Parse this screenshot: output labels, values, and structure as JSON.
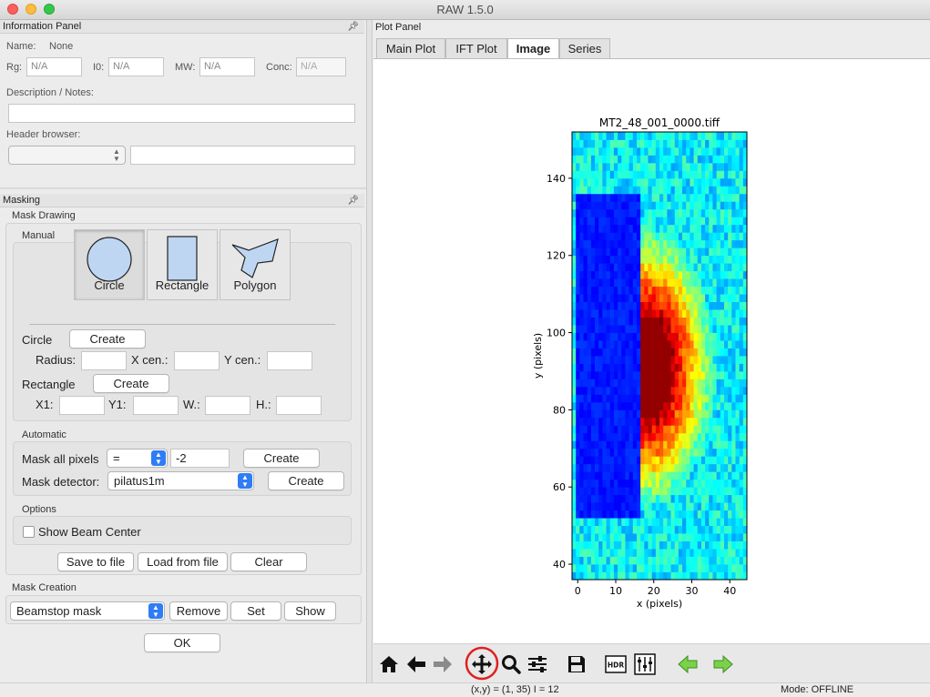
{
  "window": {
    "title": "RAW 1.5.0"
  },
  "info_panel": {
    "title": "Information Panel",
    "name_label": "Name:",
    "name_value": "None",
    "rg_label": "Rg:",
    "rg_value": "N/A",
    "i0_label": "I0:",
    "i0_value": "N/A",
    "mw_label": "MW:",
    "mw_value": "N/A",
    "conc_label": "Conc:",
    "conc_value": "N/A",
    "notes_label": "Description / Notes:",
    "header_label": "Header browser:"
  },
  "masking": {
    "title": "Masking",
    "drawing_label": "Mask Drawing",
    "manual_label": "Manual",
    "tools": [
      "Circle",
      "Rectangle",
      "Polygon"
    ],
    "circle_label": "Circle",
    "create_label": "Create",
    "radius_label": "Radius:",
    "xcen_label": "X cen.:",
    "ycen_label": "Y cen.:",
    "rectangle_label": "Rectangle",
    "x1_label": "X1:",
    "y1_label": "Y1:",
    "w_label": "W.:",
    "h_label": "H.:",
    "automatic_label": "Automatic",
    "mask_all_label": "Mask all pixels",
    "mask_all_op": "=",
    "mask_all_value": "-2",
    "mask_detector_label": "Mask detector:",
    "detector_value": "pilatus1m",
    "options_label": "Options",
    "show_beam_label": "Show Beam Center",
    "save_label": "Save to file",
    "load_label": "Load from file",
    "clear_label": "Clear",
    "creation_label": "Mask Creation",
    "mask_type_value": "Beamstop mask",
    "remove_label": "Remove",
    "set_label": "Set",
    "show_label": "Show",
    "ok_label": "OK"
  },
  "plot_panel": {
    "title": "Plot Panel",
    "tabs": [
      "Main Plot",
      "IFT Plot",
      "Image",
      "Series"
    ],
    "active_tab": "Image"
  },
  "status": {
    "coords": "(x,y) = (1, 35)   I = 12",
    "mode": "Mode: OFFLINE"
  },
  "toolbar": {
    "icons": [
      "home-icon",
      "back-icon",
      "forward-icon",
      "pan-icon",
      "zoom-icon",
      "configure-subplots-icon",
      "save-icon",
      "hdr-icon",
      "image-settings-icon",
      "previous-image-icon",
      "next-image-icon"
    ],
    "highlighted": "pan-icon"
  },
  "chart_data": {
    "type": "heatmap",
    "title": "MT2_48_001_0000.tiff",
    "xlabel": "x (pixels)",
    "ylabel": "y (pixels)",
    "xlim": [
      -1.5,
      44.5
    ],
    "ylim": [
      36,
      152
    ],
    "xticks": [
      0,
      10,
      20,
      30,
      40
    ],
    "yticks": [
      40,
      60,
      80,
      100,
      120,
      140
    ],
    "colormap": "jet",
    "beamstop_region": {
      "x": [
        0,
        16
      ],
      "y": [
        52,
        135
      ]
    },
    "saturated_region": {
      "center": [
        18,
        91
      ],
      "radii": [
        7,
        14
      ]
    }
  }
}
